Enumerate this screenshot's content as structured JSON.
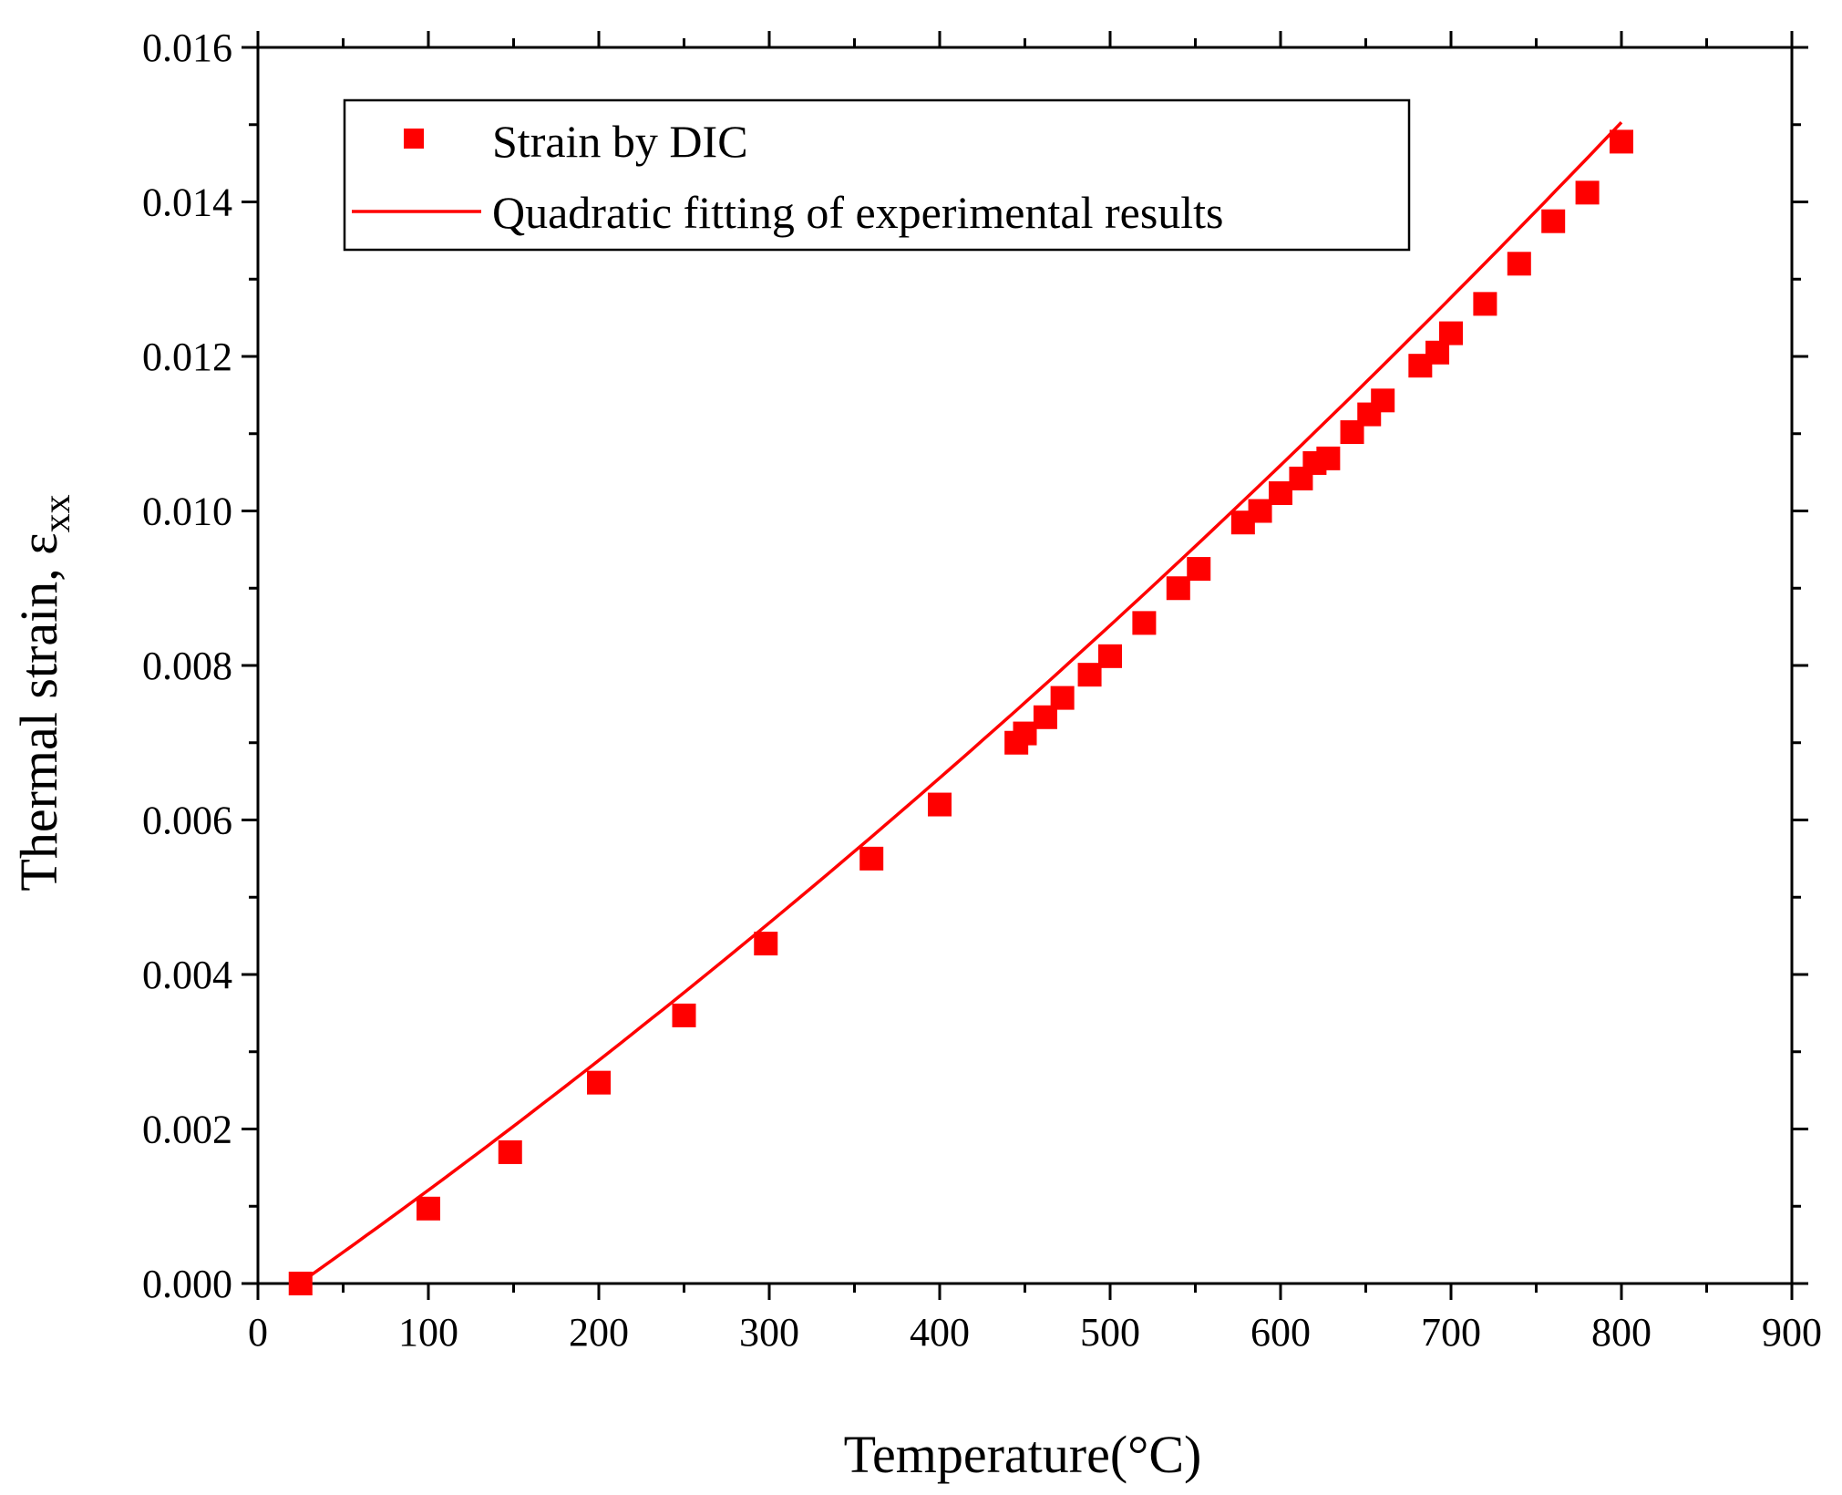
{
  "chart_data": {
    "type": "scatter",
    "title": "",
    "xlabel": "Temperature(°C)",
    "ylabel": {
      "main": "Thermal strain, ε",
      "subscript": "xx"
    },
    "xlim": [
      0,
      900
    ],
    "ylim": [
      0,
      0.016
    ],
    "x_ticks": [
      0,
      100,
      200,
      300,
      400,
      500,
      600,
      700,
      800,
      900
    ],
    "y_ticks": [
      0.0,
      0.002,
      0.004,
      0.006,
      0.008,
      0.01,
      0.012,
      0.014,
      0.016
    ],
    "y_tick_labels": [
      "0.000",
      "0.002",
      "0.004",
      "0.006",
      "0.008",
      "0.010",
      "0.012",
      "0.014",
      "0.016"
    ],
    "x_tick_labels": [
      "0",
      "100",
      "200",
      "300",
      "400",
      "500",
      "600",
      "700",
      "800",
      "900"
    ],
    "grid": false,
    "legend_position": "top-left",
    "series": [
      {
        "name": "Strain by DIC",
        "kind": "markers",
        "color": "#ff0000",
        "x": [
          25,
          100,
          148,
          200,
          250,
          298,
          360,
          400,
          445,
          450,
          462,
          472,
          488,
          500,
          520,
          540,
          552,
          578,
          588,
          600,
          612,
          620,
          628,
          642,
          652,
          660,
          682,
          692,
          700,
          720,
          740,
          760,
          780,
          800
        ],
        "y": [
          0.0,
          0.00097,
          0.0017,
          0.0026,
          0.00347,
          0.0044,
          0.0055,
          0.0062,
          0.007,
          0.00712,
          0.00733,
          0.00758,
          0.00788,
          0.00812,
          0.00855,
          0.009,
          0.00925,
          0.00985,
          0.01,
          0.01023,
          0.01042,
          0.01062,
          0.01068,
          0.01102,
          0.01125,
          0.01143,
          0.01188,
          0.01205,
          0.0123,
          0.01268,
          0.0132,
          0.01375,
          0.01412,
          0.01478
        ]
      },
      {
        "name": "Quadratic fitting of experimental results",
        "kind": "line",
        "color": "#ff0000",
        "x_range": [
          25,
          800
        ],
        "coefficients": {
          "a": -0.00037386,
          "b": 1.53346e-05,
          "c": 4.90125e-09
        }
      }
    ]
  }
}
